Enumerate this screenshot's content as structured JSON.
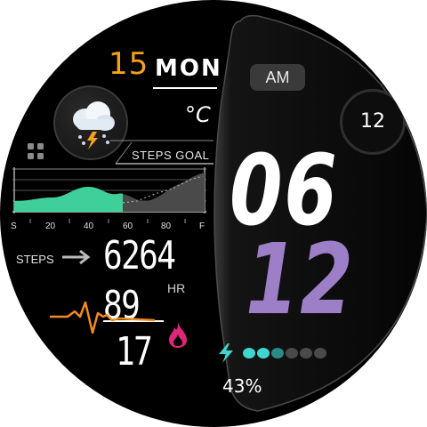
{
  "date": {
    "day": "15",
    "weekday": "MON"
  },
  "weather": {
    "icon": "thunderstorm-icon",
    "unit": "°C"
  },
  "steps_goal": {
    "label": "STEPS GOAL",
    "axis_labels": [
      "S",
      "20",
      "40",
      "60",
      "80",
      "F"
    ],
    "progress_fraction": 0.55
  },
  "steps": {
    "label": "STEPS",
    "value": "6264"
  },
  "heart_rate": {
    "value": "89",
    "label": "HR"
  },
  "calories": {
    "value": "17"
  },
  "time": {
    "ampm": "AM",
    "seconds": "12",
    "hour": "06",
    "minute": "12"
  },
  "battery": {
    "percent": "43%",
    "fill_fraction": 0.43
  },
  "colors": {
    "accent_orange": "#f5a21b",
    "minute_purple": "#9d7fc8",
    "chart_green": "#3ecf9a",
    "battery_cyan": "#3fd6cf",
    "hr_orange": "#f08a1c",
    "calorie_pink": "#e0267a"
  }
}
